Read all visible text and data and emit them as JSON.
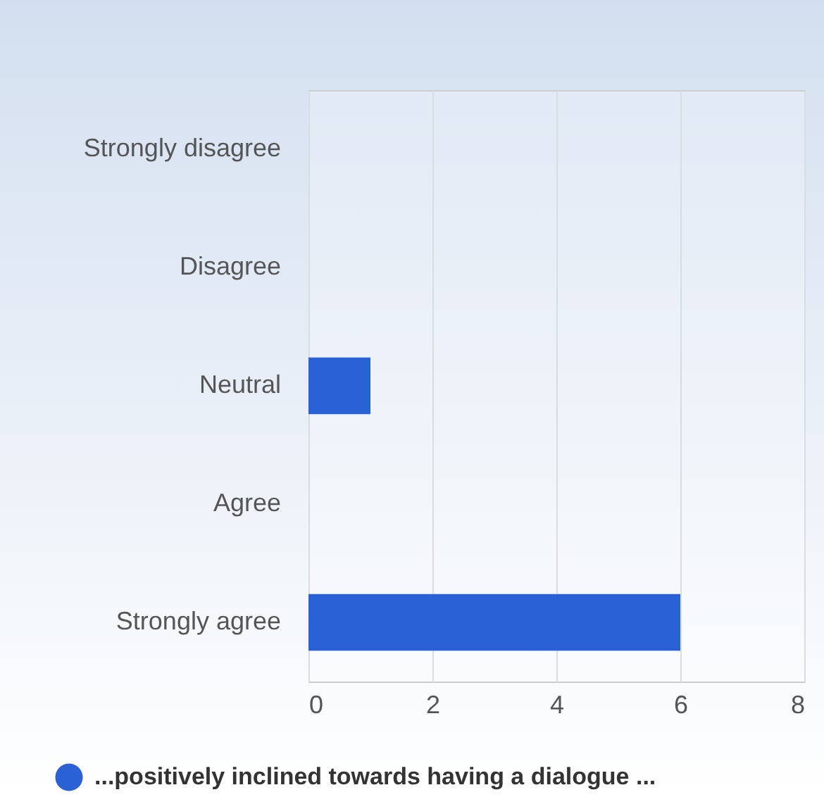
{
  "chart_data": {
    "type": "bar",
    "orientation": "horizontal",
    "categories": [
      "Strongly disagree",
      "Disagree",
      "Neutral",
      "Agree",
      "Strongly agree"
    ],
    "series": [
      {
        "name": "...positively inclined towards having a dialogue ...",
        "color": "#2a62d6",
        "values": [
          0,
          0,
          1,
          0,
          6
        ]
      }
    ],
    "xlim": [
      0,
      8
    ],
    "xticks": [
      0,
      2,
      4,
      6,
      8
    ],
    "grid": "x",
    "legend": "bottom"
  }
}
